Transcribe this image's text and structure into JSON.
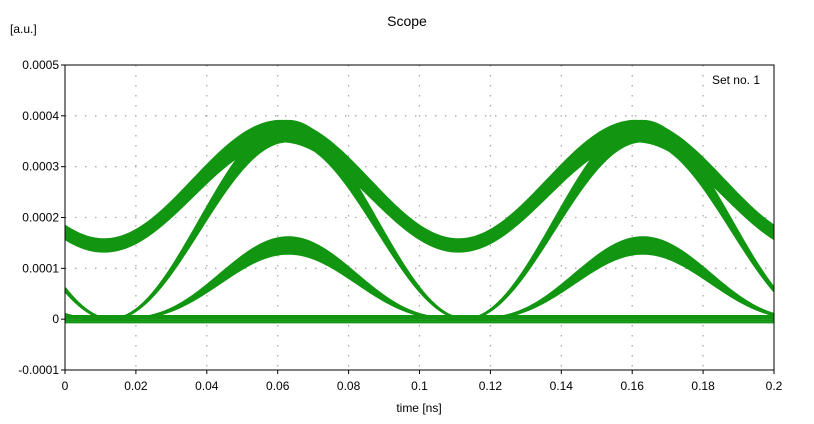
{
  "chart_data": {
    "type": "line",
    "title": "Scope",
    "ylabel": "[a.u.]",
    "xlabel": "time [ns]",
    "xlim": [
      0,
      0.2
    ],
    "ylim": [
      -0.0001,
      0.0005
    ],
    "x_ticks": [
      "0",
      "0.02",
      "0.04",
      "0.06",
      "0.08",
      "0.1",
      "0.12",
      "0.14",
      "0.16",
      "0.18",
      "0.2"
    ],
    "y_ticks": [
      "-0.0001",
      "0",
      "0.0001",
      "0.0002",
      "0.0003",
      "0.0004",
      "0.0005"
    ],
    "grid": true,
    "legend_position": "top-right",
    "series": [
      {
        "name": "Set no. 1",
        "color": "#129612",
        "period": 0.1,
        "peak_times": [
          0.061,
          0.161
        ],
        "peak_level": 0.00037,
        "peak_spread": 4e-05,
        "trough_times": [
          0.013,
          0.113
        ],
        "trough_level": 0.000145,
        "cross_level": 6.5e-05,
        "zero_level": 0.0,
        "zero_spread": 4e-06
      }
    ]
  }
}
